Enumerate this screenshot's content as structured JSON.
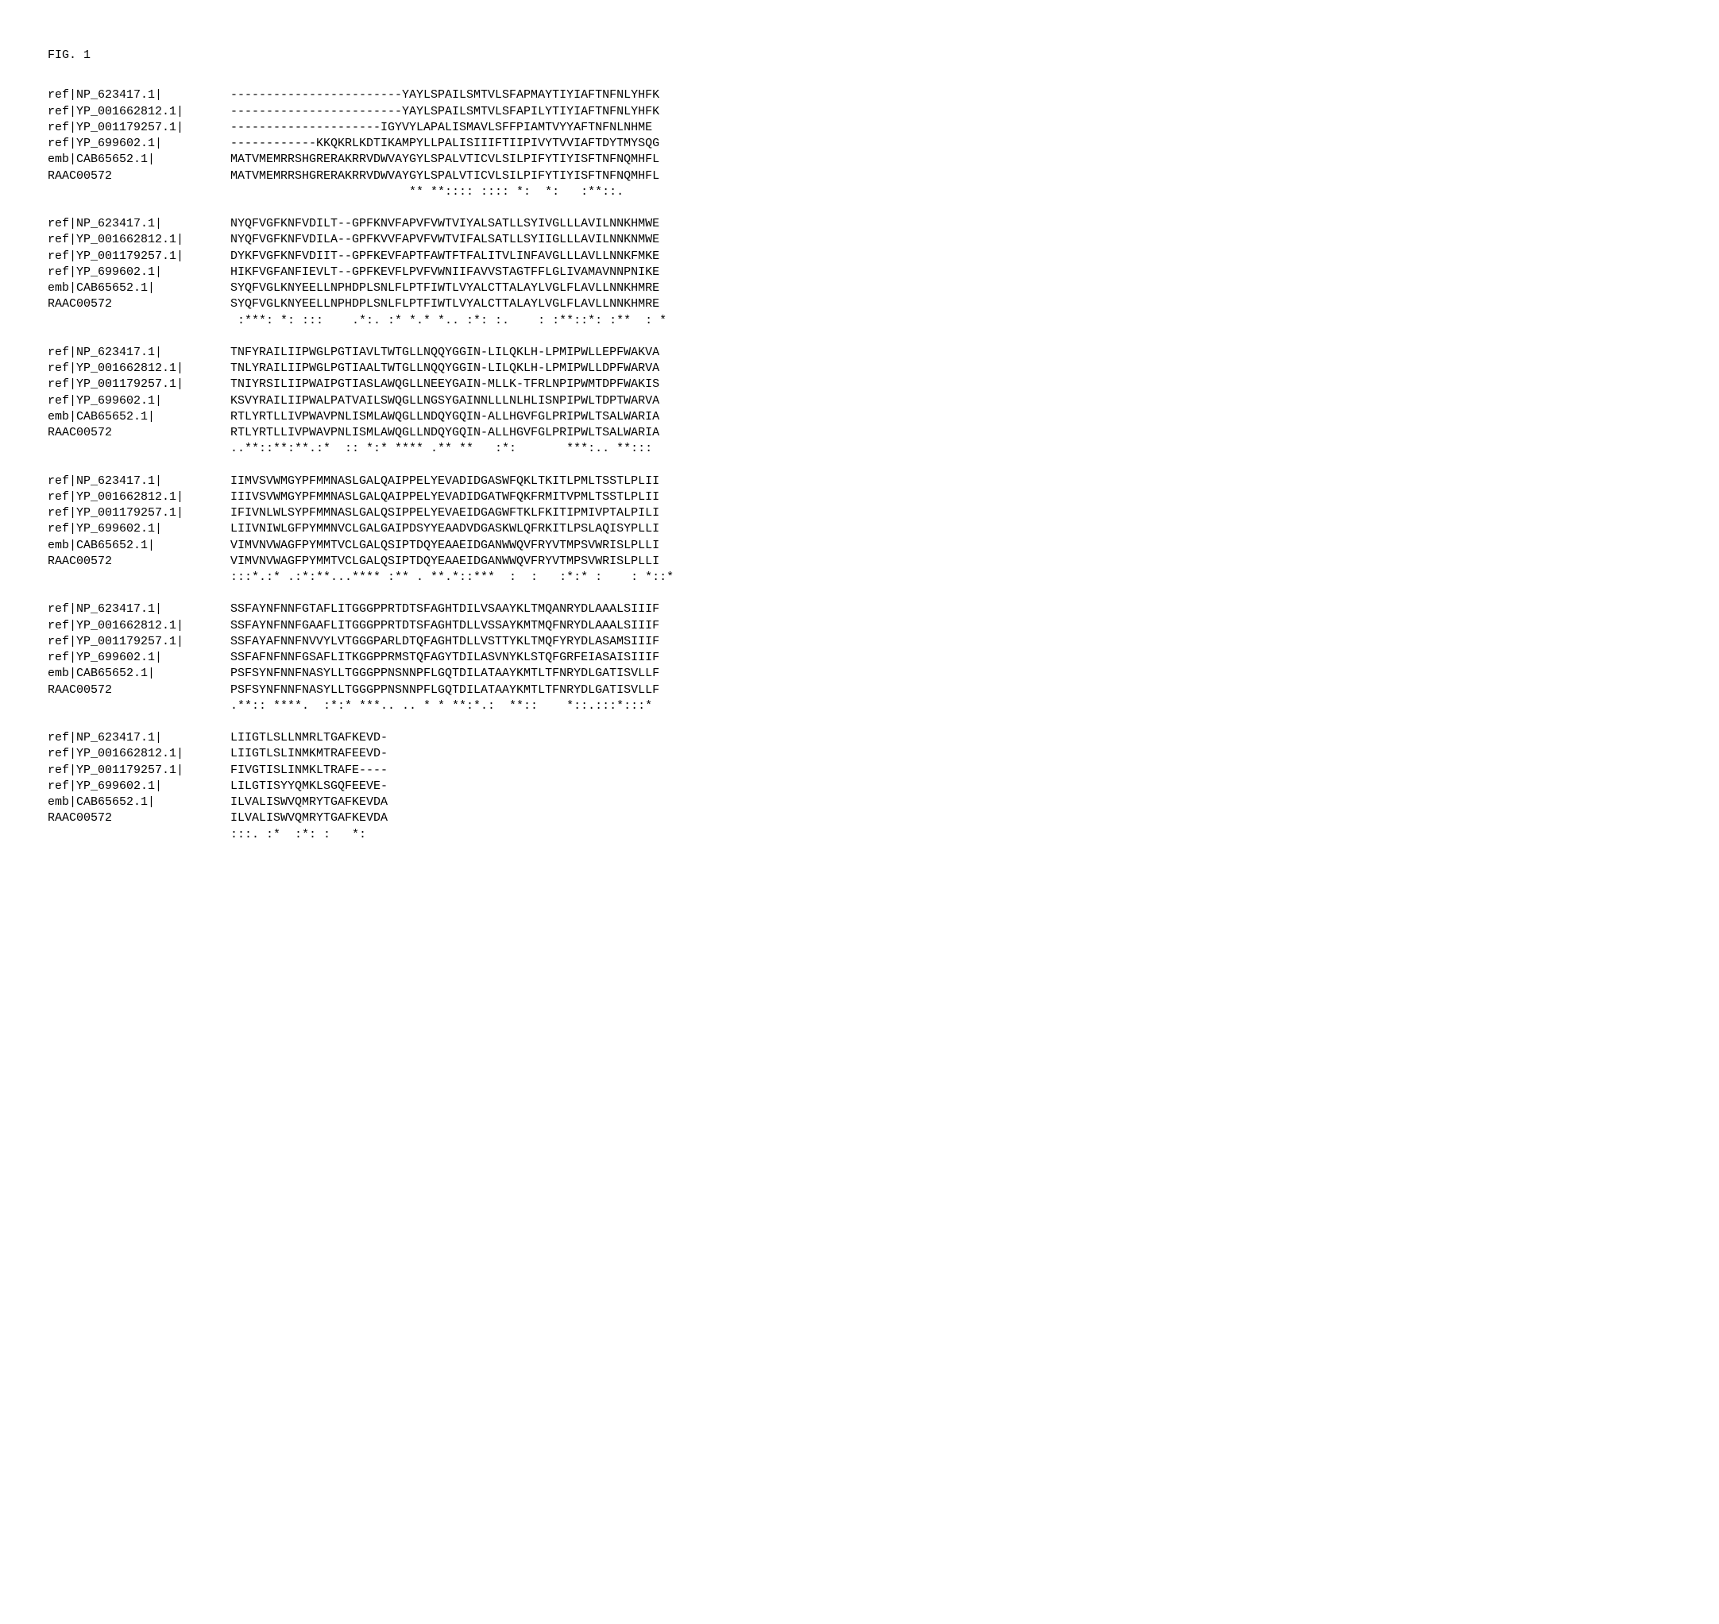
{
  "title": "FIG. 1",
  "labels": [
    "ref|NP_623417.1|",
    "ref|YP_001662812.1|",
    "ref|YP_001179257.1|",
    "ref|YP_699602.1|",
    "emb|CAB65652.1|",
    "RAAC00572"
  ],
  "blocks": [
    {
      "seqs": [
        "------------------------YAYLSPAILSMTVLSFAPMAYTIYIAFTNFNLYHFK",
        "------------------------YAYLSPAILSMTVLSFAPILYTIYIAFTNFNLYHFK",
        "---------------------IGYVYLAPALISMAVLSFFPIAMTVYYAFTNFNLNHME",
        "------------KKQKRLKDTIKAMPYLLPALISIIIFTIIPIVYTVVIAFTDYTMYSQG",
        "MATVMEMRRSHGRERAKRRVDWVAYGYLSPALVTICVLSILPIFYTIYISFTNFNQMHFL",
        "MATVMEMRRSHGRERAKRRVDWVAYGYLSPALVTICVLSILPIFYTIYISFTNFNQMHFL"
      ],
      "cons": "                         ** **:::: :::: *:  *:   :**::.     "
    },
    {
      "seqs": [
        "NYQFVGFKNFVDILT--GPFKNVFAPVFVWTVIYALSATLLSYIVGLLLAVILNNKHMWE",
        "NYQFVGFKNFVDILA--GPFKVVFAPVFVWTVIFALSATLLSYIIGLLLAVILNNKNMWE",
        "DYKFVGFKNFVDIIT--GPFKEVFAPTFAWTFTFALITVLINFAVGLLLAVLLNNKFMKE",
        "HIKFVGFANFIEVLT--GPFKEVFLPVFVWNIIFAVVSTAGTFFLGLIVAMAVNNPNIKE",
        "SYQFVGLKNYEELLNPHDPLSNLFLPTFIWTLVYALCTTALAYLVGLFLAVLLNNKHMRE",
        "SYQFVGLKNYEELLNPHDPLSNLFLPTFIWTLVYALCTTALAYLVGLFLAVLLNNKHMRE"
      ],
      "cons": " :***: *: :::    .*:. :* *.* *.. :*: :.    : :**::*: :**  : *"
    },
    {
      "seqs": [
        "TNFYRAILIIPWGLPGTIAVLTWTGLLNQQYGGIN-LILQKLH-LPMIPWLLEPFWAKVA",
        "TNLYRAILIIPWGLPGTIAALTWTGLLNQQYGGIN-LILQKLH-LPMIPWLLDPFWARVA",
        "TNIYRSILIIPWAIPGTIASLAWQGLLNEEYGAIN-MLLK-TFRLNPIPWMTDPFWAKIS",
        "KSVYRAILIIPWALPATVAILSWQGLLNGSYGAINNLLLNLHLISNPIPWLTDPTWARVA",
        "RTLYRTLLIVPWAVPNLISMLAWQGLLNDQYGQIN-ALLHGVFGLPRIPWLTSALWARIA",
        "RTLYRTLLIVPWAVPNLISMLAWQGLLNDQYGQIN-ALLHGVFGLPRIPWLTSALWARIA"
      ],
      "cons": "..**::**:**.:*  :: *:* **** .** **   :*:       ***:.. **:::"
    },
    {
      "seqs": [
        "IIMVSVWMGYPFMMNASLGALQAIPPELYEVADIDGASWFQKLTKITLPMLTSSTLPLII",
        "IIIVSVWMGYPFMMNASLGALQAIPPELYEVADIDGATWFQKFRMITVPMLTSSTLPLII",
        "IFIVNLWLSYPFMMNASLGALQSIPPELYEVAEIDGAGWFTKLFKITIPMIVPTALPILI",
        "LIIVNIWLGFPYMMNVCLGALGAIPDSYYEAADVDGASKWLQFRKITLPSLAQISYPLLI",
        "VIMVNVWAGFPYMMTVCLGALQSIPTDQYEAAEIDGANWWQVFRYVTMPSVWRISLPLLI",
        "VIMVNVWAGFPYMMTVCLGALQSIPTDQYEAAEIDGANWWQVFRYVTMPSVWRISLPLLI"
      ],
      "cons": ":::*.:* .:*:**...**** :** . **.*::***  :  :   :*:* :    : *::*"
    },
    {
      "seqs": [
        "SSFAYNFNNFGTAFLITGGGPPRTDTSFAGHTDILVSAAYKLTMQANRYDLAAALSIIIF",
        "SSFAYNFNNFGAAFLITGGGPPRTDTSFAGHTDLLVSSAYKMTMQFNRYDLAAALSIIIF",
        "SSFAYAFNNFNVVYLVTGGGPARLDTQFAGHTDLLVSTTYKLTMQFYRYDLASAMSIIIF",
        "SSFAFNFNNFGSAFLITKGGPPRMSTQFAGYTDILASVNYKLSTQFGRFEIASAISIIIF",
        "PSFSYNFNNFNASYLLTGGGPPNSNNPFLGQTDILATAAYKMTLTFNRYDLGATISVLLF",
        "PSFSYNFNNFNASYLLTGGGPPNSNNPFLGQTDILATAAYKMTLTFNRYDLGATISVLLF"
      ],
      "cons": ".**:: ****.  :*:* ***.. .. * * **:*.:  **::    *::.:::*:::*"
    },
    {
      "seqs": [
        "LIIGTLSLLNMRLTGAFKEVD-",
        "LIIGTLSLINMKMTRAFEEVD-",
        "FIVGTISLINMKLTRAFE----",
        "LILGTISYYQMKLSGQFEEVE-",
        "ILVALISWVQMRYTGAFKEVDA",
        "ILVALISWVQMRYTGAFKEVDA"
      ],
      "cons": ":::. :*  :*: :   *:    "
    }
  ]
}
